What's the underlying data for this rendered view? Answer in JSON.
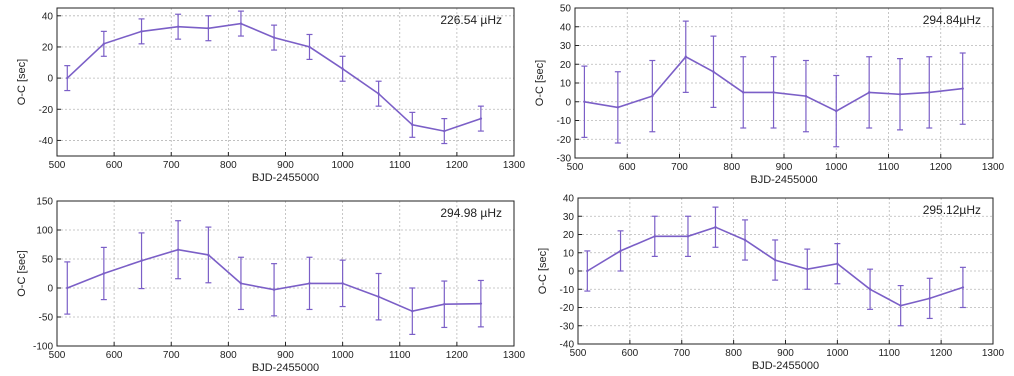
{
  "chart_data": [
    {
      "type": "line",
      "annotation": "226.54 µHz",
      "xlabel": "BJD-2455000",
      "ylabel": "O-C [sec]",
      "xlim": [
        500,
        1300
      ],
      "ylim": [
        -50,
        45
      ],
      "xticks": [
        500,
        600,
        700,
        800,
        900,
        1000,
        1100,
        1200,
        1300
      ],
      "yticks": [
        -40,
        -20,
        0,
        20,
        40
      ],
      "grid": true,
      "color": "#7b5fc7",
      "series": [
        {
          "x": [
            518,
            582,
            648,
            712,
            765,
            822,
            880,
            942,
            1000,
            1063,
            1122,
            1178,
            1242
          ],
          "y": [
            0,
            22,
            30,
            33,
            32,
            35,
            26,
            20,
            6,
            -10,
            -30,
            -34,
            -26
          ],
          "err": [
            8,
            8,
            8,
            8,
            8,
            8,
            8,
            8,
            8,
            8,
            8,
            8,
            8
          ]
        }
      ]
    },
    {
      "type": "line",
      "annotation": "294.84µHz",
      "xlabel": "BJD-2455000",
      "ylabel": "O-C [sec]",
      "xlim": [
        500,
        1300
      ],
      "ylim": [
        -30,
        50
      ],
      "xticks": [
        500,
        600,
        700,
        800,
        900,
        1000,
        1100,
        1200,
        1300
      ],
      "yticks": [
        -30,
        -20,
        -10,
        0,
        10,
        20,
        30,
        40,
        50
      ],
      "grid": true,
      "color": "#7b5fc7",
      "series": [
        {
          "x": [
            518,
            582,
            648,
            712,
            765,
            822,
            880,
            942,
            1000,
            1063,
            1122,
            1178,
            1242
          ],
          "y": [
            0,
            -3,
            3,
            24,
            16,
            5,
            5,
            3,
            -5,
            5,
            4,
            5,
            7
          ],
          "err": [
            19,
            19,
            19,
            19,
            19,
            19,
            19,
            19,
            19,
            19,
            19,
            19,
            19
          ]
        }
      ]
    },
    {
      "type": "line",
      "annotation": "294.98 µHz",
      "xlabel": "BJD-2455000",
      "ylabel": "O-C [sec]",
      "xlim": [
        500,
        1300
      ],
      "ylim": [
        -100,
        150
      ],
      "xticks": [
        500,
        600,
        700,
        800,
        900,
        1000,
        1100,
        1200,
        1300
      ],
      "yticks": [
        -100,
        -50,
        0,
        50,
        100,
        150
      ],
      "grid": true,
      "color": "#7b5fc7",
      "series": [
        {
          "x": [
            518,
            582,
            648,
            712,
            765,
            822,
            880,
            942,
            1000,
            1063,
            1122,
            1178,
            1242
          ],
          "y": [
            0,
            25,
            47,
            66,
            57,
            8,
            -3,
            8,
            8,
            -15,
            -40,
            -28,
            -27
          ],
          "err": [
            45,
            45,
            48,
            50,
            48,
            45,
            45,
            45,
            40,
            40,
            40,
            40,
            40
          ]
        }
      ]
    },
    {
      "type": "line",
      "annotation": "295.12µHz",
      "xlabel": "BJD-2455000",
      "ylabel": "O-C [sec]",
      "xlim": [
        500,
        1300
      ],
      "ylim": [
        -40,
        40
      ],
      "xticks": [
        500,
        600,
        700,
        800,
        900,
        1000,
        1100,
        1200,
        1300
      ],
      "yticks": [
        -40,
        -30,
        -20,
        -10,
        0,
        10,
        20,
        30,
        40
      ],
      "grid": true,
      "color": "#7b5fc7",
      "series": [
        {
          "x": [
            518,
            582,
            648,
            712,
            765,
            822,
            880,
            942,
            1000,
            1063,
            1122,
            1178,
            1242
          ],
          "y": [
            0,
            11,
            19,
            19,
            24,
            17,
            6,
            1,
            4,
            -10,
            -19,
            -15,
            -9
          ],
          "err": [
            11,
            11,
            11,
            11,
            11,
            11,
            11,
            11,
            11,
            11,
            11,
            11,
            11
          ]
        }
      ]
    }
  ]
}
